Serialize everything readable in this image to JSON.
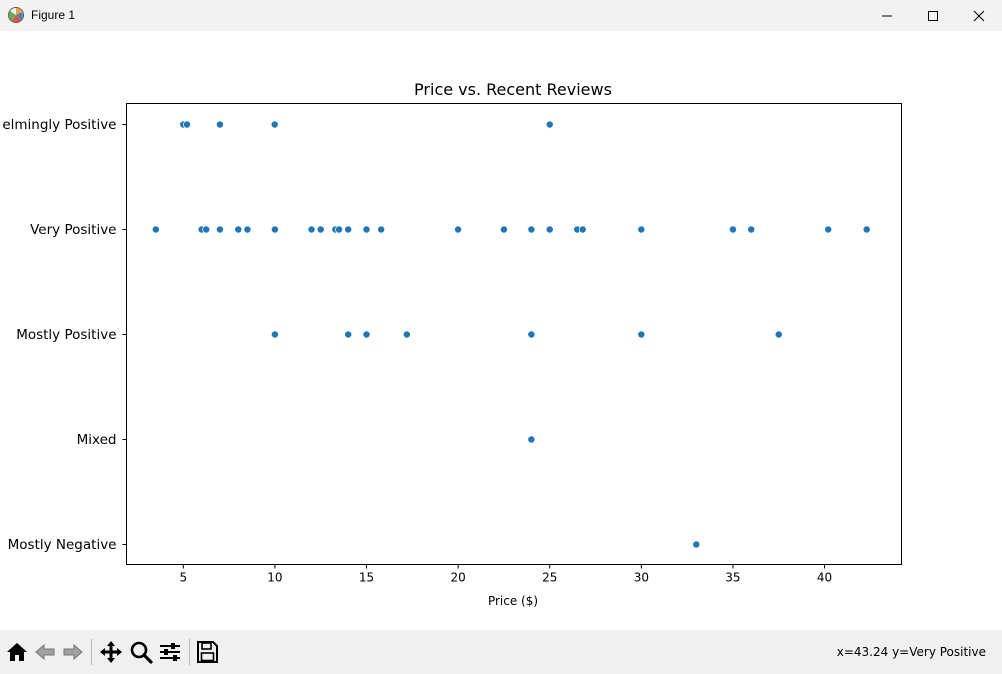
{
  "window": {
    "title": "Figure 1",
    "icons": {
      "app": "matplotlib-icon",
      "minimize": "minimize-icon",
      "maximize": "maximize-icon",
      "close": "close-icon"
    }
  },
  "toolbar": {
    "tools": [
      "home-icon",
      "back-arrow-icon",
      "forward-arrow-icon",
      "pan-move-icon",
      "zoom-magnifier-icon",
      "configure-subplots-icon",
      "save-floppy-icon"
    ],
    "coordinates": "x=43.24 y=Very Positive"
  },
  "chart_data": {
    "type": "scatter",
    "title": "Price vs. Recent Reviews",
    "xlabel": "Price ($)",
    "ylabel": "",
    "xlim": [
      1.9,
      44.2
    ],
    "x_ticks": [
      5,
      10,
      15,
      20,
      25,
      30,
      35,
      40
    ],
    "y_categories": [
      "Overwhelmingly Positive",
      "Very Positive",
      "Mostly Positive",
      "Mixed",
      "Mostly Negative"
    ],
    "y_tick_labels_visible": [
      "elmingly Positive",
      "Very Positive",
      "Mostly Positive",
      "Mixed",
      "Mostly Negative"
    ],
    "grid": false,
    "marker_color": "#1f77b4",
    "points": [
      {
        "x": 5.0,
        "y": "Overwhelmingly Positive"
      },
      {
        "x": 5.2,
        "y": "Overwhelmingly Positive"
      },
      {
        "x": 7.0,
        "y": "Overwhelmingly Positive"
      },
      {
        "x": 9.99,
        "y": "Overwhelmingly Positive"
      },
      {
        "x": 25.0,
        "y": "Overwhelmingly Positive"
      },
      {
        "x": 3.5,
        "y": "Very Positive"
      },
      {
        "x": 6.0,
        "y": "Very Positive"
      },
      {
        "x": 6.25,
        "y": "Very Positive"
      },
      {
        "x": 7.0,
        "y": "Very Positive"
      },
      {
        "x": 8.0,
        "y": "Very Positive"
      },
      {
        "x": 8.5,
        "y": "Very Positive"
      },
      {
        "x": 10.0,
        "y": "Very Positive"
      },
      {
        "x": 12.0,
        "y": "Very Positive"
      },
      {
        "x": 12.5,
        "y": "Very Positive"
      },
      {
        "x": 13.3,
        "y": "Very Positive"
      },
      {
        "x": 13.5,
        "y": "Very Positive"
      },
      {
        "x": 14.0,
        "y": "Very Positive"
      },
      {
        "x": 15.0,
        "y": "Very Positive"
      },
      {
        "x": 15.8,
        "y": "Very Positive"
      },
      {
        "x": 20.0,
        "y": "Very Positive"
      },
      {
        "x": 22.5,
        "y": "Very Positive"
      },
      {
        "x": 24.0,
        "y": "Very Positive"
      },
      {
        "x": 25.0,
        "y": "Very Positive"
      },
      {
        "x": 26.5,
        "y": "Very Positive"
      },
      {
        "x": 26.8,
        "y": "Very Positive"
      },
      {
        "x": 30.0,
        "y": "Very Positive"
      },
      {
        "x": 35.0,
        "y": "Very Positive"
      },
      {
        "x": 36.0,
        "y": "Very Positive"
      },
      {
        "x": 40.2,
        "y": "Very Positive"
      },
      {
        "x": 42.3,
        "y": "Very Positive"
      },
      {
        "x": 10.0,
        "y": "Mostly Positive"
      },
      {
        "x": 14.0,
        "y": "Mostly Positive"
      },
      {
        "x": 15.0,
        "y": "Mostly Positive"
      },
      {
        "x": 17.2,
        "y": "Mostly Positive"
      },
      {
        "x": 24.0,
        "y": "Mostly Positive"
      },
      {
        "x": 30.0,
        "y": "Mostly Positive"
      },
      {
        "x": 37.5,
        "y": "Mostly Positive"
      },
      {
        "x": 24.0,
        "y": "Mixed"
      },
      {
        "x": 33.0,
        "y": "Mostly Negative"
      }
    ]
  }
}
